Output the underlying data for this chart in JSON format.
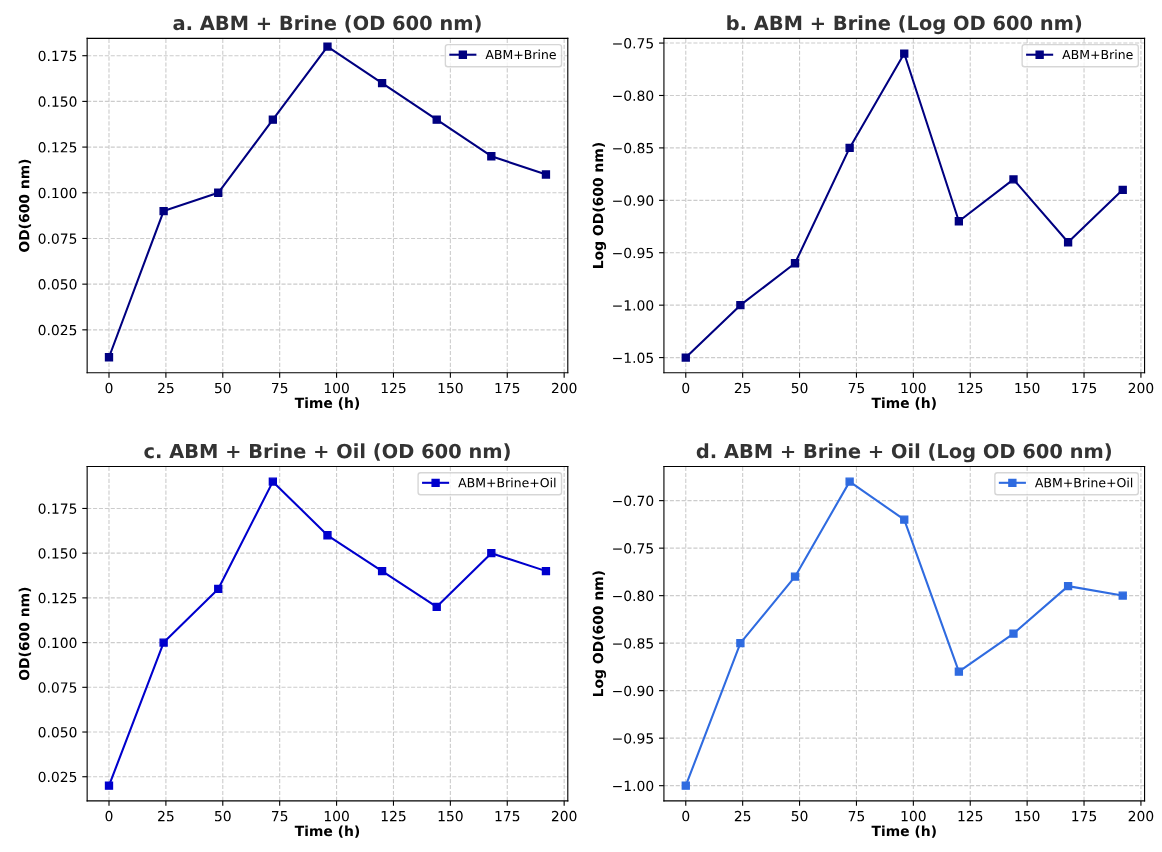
{
  "chart_data": [
    {
      "type": "line",
      "title": "a. ABM + Brine (OD 600 nm)",
      "xlabel": "Time (h)",
      "ylabel": "OD(600 nm)",
      "x": [
        0,
        24,
        48,
        72,
        96,
        120,
        144,
        168,
        192
      ],
      "series": [
        {
          "name": "ABM+Brine",
          "color": "#000080",
          "values": [
            0.01,
            0.09,
            0.1,
            0.14,
            0.18,
            0.16,
            0.14,
            0.12,
            0.11
          ]
        }
      ],
      "xlim": [
        -9.6,
        201.6
      ],
      "xticks": [
        0,
        25,
        50,
        75,
        100,
        125,
        150,
        175,
        200
      ],
      "ylim": [
        0.0015,
        0.1845
      ],
      "yticks": [
        {
          "value": 0.025,
          "label": "0.025"
        },
        {
          "value": 0.05,
          "label": "0.050"
        },
        {
          "value": 0.075,
          "label": "0.075"
        },
        {
          "value": 0.1,
          "label": "0.100"
        },
        {
          "value": 0.125,
          "label": "0.125"
        },
        {
          "value": 0.15,
          "label": "0.150"
        },
        {
          "value": 0.175,
          "label": "0.175"
        }
      ],
      "grid": true,
      "legend": "top right",
      "marker": "square",
      "line_style": "solid"
    },
    {
      "type": "line",
      "title": "b. ABM + Brine (Log OD 600 nm)",
      "xlabel": "Time (h)",
      "ylabel": "Log OD(600 nm)",
      "x": [
        0,
        24,
        48,
        72,
        96,
        120,
        144,
        168,
        192
      ],
      "series": [
        {
          "name": "ABM+Brine",
          "color": "#000080",
          "values": [
            -1.05,
            -1.0,
            -0.96,
            -0.85,
            -0.76,
            -0.92,
            -0.88,
            -0.94,
            -0.89
          ]
        }
      ],
      "xlim": [
        -9.6,
        201.6
      ],
      "xticks": [
        0,
        25,
        50,
        75,
        100,
        125,
        150,
        175,
        200
      ],
      "ylim": [
        -1.0645,
        -0.7455
      ],
      "yticks": [
        {
          "value": -1.05,
          "label": "−1.05"
        },
        {
          "value": -1.0,
          "label": "−1.00"
        },
        {
          "value": -0.95,
          "label": "−0.95"
        },
        {
          "value": -0.9,
          "label": "−0.90"
        },
        {
          "value": -0.85,
          "label": "−0.85"
        },
        {
          "value": -0.8,
          "label": "−0.80"
        },
        {
          "value": -0.75,
          "label": "−0.75"
        }
      ],
      "grid": true,
      "legend": "top right",
      "marker": "square",
      "line_style": "solid"
    },
    {
      "type": "line",
      "title": "c. ABM + Brine + Oil (OD 600 nm)",
      "xlabel": "Time (h)",
      "ylabel": "OD(600 nm)",
      "x": [
        0,
        24,
        48,
        72,
        96,
        120,
        144,
        168,
        192
      ],
      "series": [
        {
          "name": "ABM+Brine+Oil",
          "color": "#0000cd",
          "values": [
            0.02,
            0.1,
            0.13,
            0.19,
            0.16,
            0.14,
            0.12,
            0.15,
            0.14
          ]
        }
      ],
      "xlim": [
        -9.6,
        201.6
      ],
      "xticks": [
        0,
        25,
        50,
        75,
        100,
        125,
        150,
        175,
        200
      ],
      "ylim": [
        0.0115,
        0.1985
      ],
      "yticks": [
        {
          "value": 0.025,
          "label": "0.025"
        },
        {
          "value": 0.05,
          "label": "0.050"
        },
        {
          "value": 0.075,
          "label": "0.075"
        },
        {
          "value": 0.1,
          "label": "0.100"
        },
        {
          "value": 0.125,
          "label": "0.125"
        },
        {
          "value": 0.15,
          "label": "0.150"
        },
        {
          "value": 0.175,
          "label": "0.175"
        }
      ],
      "grid": true,
      "legend": "top right",
      "marker": "square",
      "line_style": "solid"
    },
    {
      "type": "line",
      "title": "d. ABM + Brine + Oil (Log OD 600 nm)",
      "xlabel": "Time (h)",
      "ylabel": "Log OD(600 nm)",
      "x": [
        0,
        24,
        48,
        72,
        96,
        120,
        144,
        168,
        192
      ],
      "series": [
        {
          "name": "ABM+Brine+Oil",
          "color": "#2f6be0",
          "values": [
            -1.0,
            -0.85,
            -0.78,
            -0.68,
            -0.72,
            -0.88,
            -0.84,
            -0.79,
            -0.8
          ]
        }
      ],
      "xlim": [
        -9.6,
        201.6
      ],
      "xticks": [
        0,
        25,
        50,
        75,
        100,
        125,
        150,
        175,
        200
      ],
      "ylim": [
        -1.016,
        -0.664
      ],
      "yticks": [
        {
          "value": -1.0,
          "label": "−1.00"
        },
        {
          "value": -0.95,
          "label": "−0.95"
        },
        {
          "value": -0.9,
          "label": "−0.90"
        },
        {
          "value": -0.85,
          "label": "−0.85"
        },
        {
          "value": -0.8,
          "label": "−0.80"
        },
        {
          "value": -0.75,
          "label": "−0.75"
        },
        {
          "value": -0.7,
          "label": "−0.70"
        }
      ],
      "grid": true,
      "legend": "top right",
      "marker": "square",
      "line_style": "solid"
    }
  ]
}
